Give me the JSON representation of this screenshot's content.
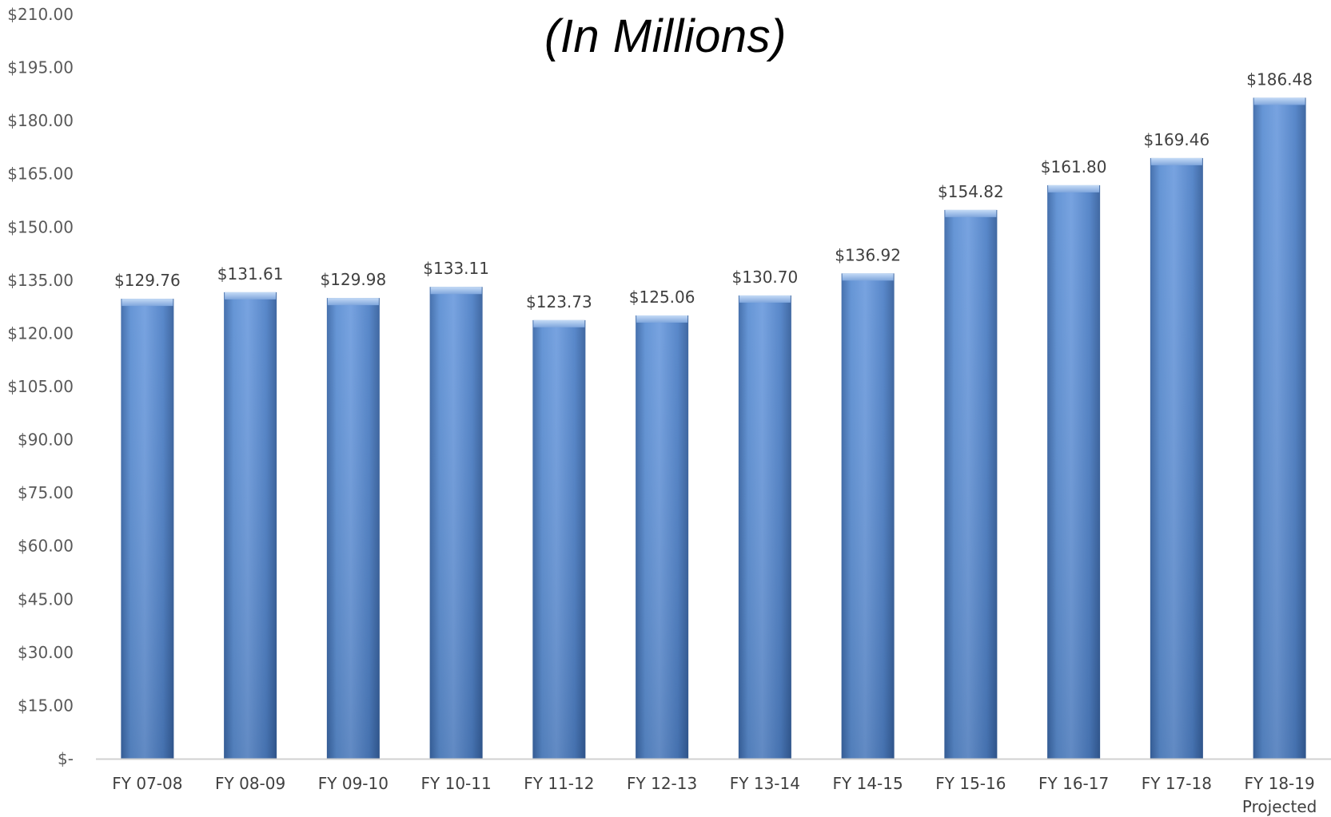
{
  "chart_data": {
    "type": "bar",
    "title": "(In Millions)",
    "xlabel": "",
    "ylabel": "",
    "categories": [
      [
        "FY 07-08"
      ],
      [
        "FY 08-09"
      ],
      [
        "FY 09-10"
      ],
      [
        "FY 10-11"
      ],
      [
        "FY 11-12"
      ],
      [
        "FY 12-13"
      ],
      [
        "FY 13-14"
      ],
      [
        "FY 14-15"
      ],
      [
        "FY 15-16"
      ],
      [
        "FY 16-17"
      ],
      [
        "FY 17-18"
      ],
      [
        "FY 18-19",
        "Projected"
      ]
    ],
    "values": [
      129.76,
      131.61,
      129.98,
      133.11,
      123.73,
      125.06,
      130.7,
      136.92,
      154.82,
      161.8,
      169.46,
      186.48
    ],
    "data_labels": [
      "$129.76",
      "$131.61",
      "$129.98",
      "$133.11",
      "$123.73",
      "$125.06",
      "$130.70",
      "$136.92",
      "$154.82",
      "$161.80",
      "$169.46",
      "$186.48"
    ],
    "ylim": [
      0,
      210
    ],
    "yticks": [
      0,
      15,
      30,
      45,
      60,
      75,
      90,
      105,
      120,
      135,
      150,
      165,
      180,
      195,
      210
    ],
    "ytick_labels": [
      "$-",
      "$15.00",
      "$30.00",
      "$45.00",
      "$60.00",
      "$75.00",
      "$90.00",
      "$105.00",
      "$120.00",
      "$135.00",
      "$150.00",
      "$165.00",
      "$180.00",
      "$195.00",
      "$210.00"
    ],
    "grid": false,
    "legend": "none",
    "colors": {
      "bar_light": "#7fa6dc",
      "bar_mid": "#5b8fd2",
      "bar_dark": "#3e6fb4",
      "bar_top": "#a9c6ee",
      "axis": "#d0d0d0"
    }
  }
}
